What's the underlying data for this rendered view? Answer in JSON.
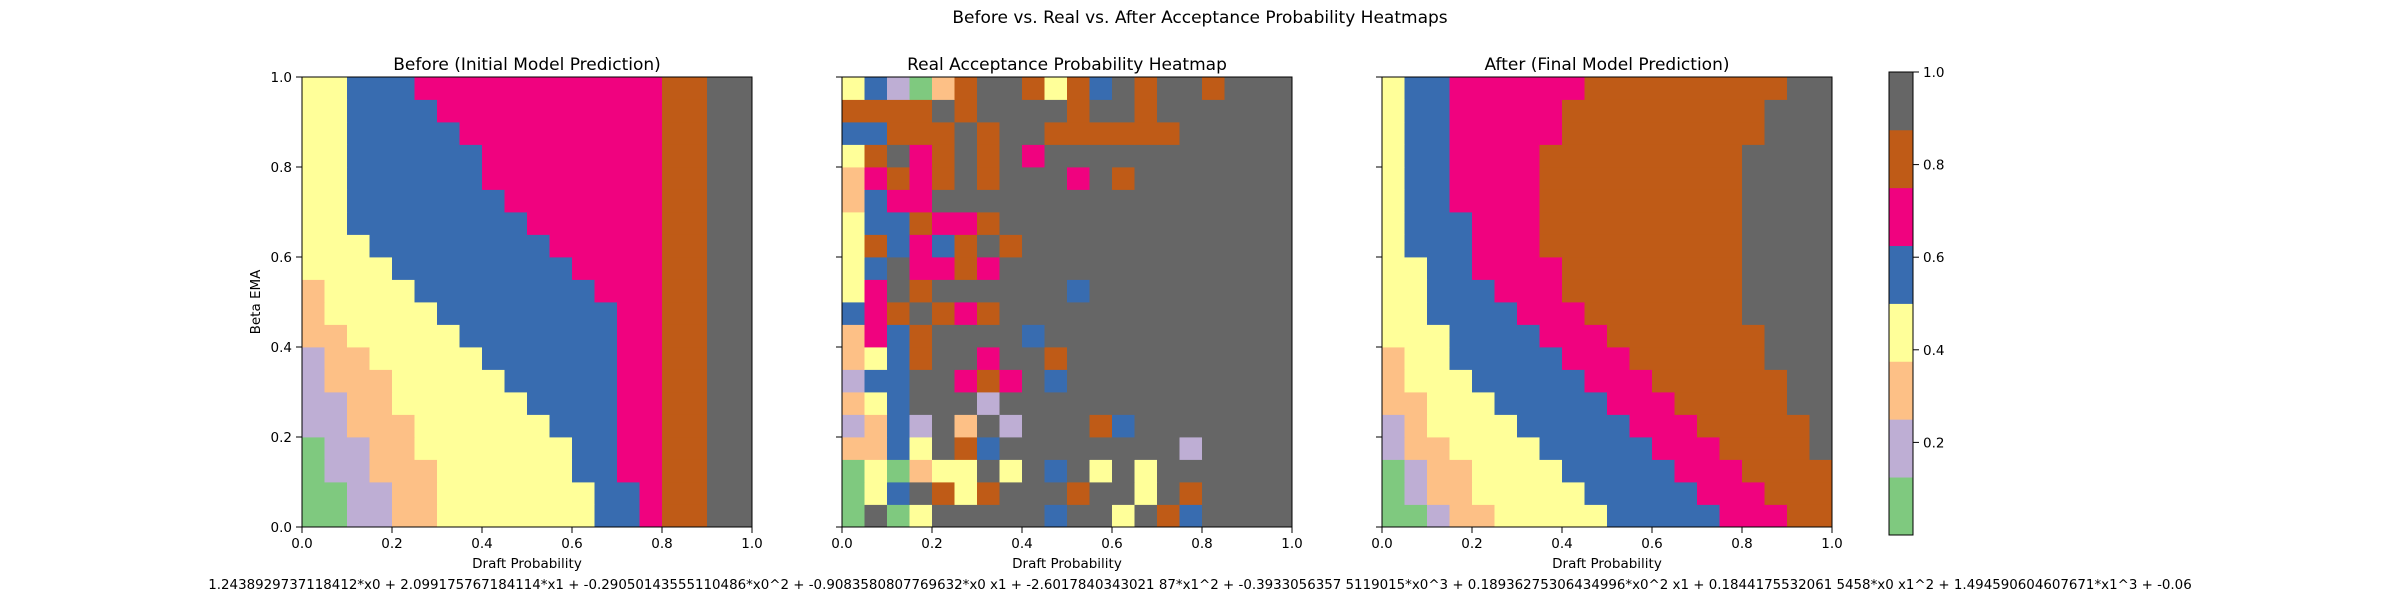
{
  "figure": {
    "suptitle": "Before vs. Real vs. After Acceptance Probability Heatmaps",
    "formula": "1.2438929737118412*x0 + 2.099175767184114*x1 + -0.29050143555110486*x0^2 + -0.9083580807769632*x0 x1 + -2.6017840343021 87*x1^2 + -0.3933056357 5119015*x0^3 + 0.18936275306434996*x0^2 x1 + 0.1844175532061 5458*x0 x1^2 + 1.494590604607671*x1^3 + -0.06"
  },
  "colors": {
    "palette": [
      "#7fc97f",
      "#beaed4",
      "#fdc086",
      "#ffff99",
      "#386cb0",
      "#f0027f",
      "#bf5b17",
      "#666666"
    ],
    "missing": "#ffffff"
  },
  "colorbar": {
    "ticks": [
      "0.2",
      "0.4",
      "0.6",
      "0.8",
      "1.0"
    ],
    "tick_values": [
      0.2,
      0.4,
      0.6,
      0.8,
      1.0
    ]
  },
  "chart_data": [
    {
      "type": "heatmap",
      "title": "Before (Initial Model Prediction)",
      "xlabel": "Draft Probability",
      "ylabel": "Beta EMA",
      "xlim": [
        0,
        1
      ],
      "ylim": [
        0,
        1
      ],
      "grid_size": 20,
      "value_range": [
        0,
        1
      ],
      "model": "before",
      "xticks": [
        "0.0",
        "0.2",
        "0.4",
        "0.6",
        "0.8",
        "1.0"
      ],
      "yticks": [
        "0.0",
        "0.2",
        "0.4",
        "0.6",
        "0.8",
        "1.0"
      ],
      "boundaries": {
        "0": [
          2,
          2,
          1,
          1,
          0,
          0,
          0,
          0,
          0,
          0,
          0,
          0,
          0,
          0,
          0,
          0,
          0,
          0,
          0,
          0
        ],
        "1": [
          4,
          4,
          3,
          3,
          2,
          2,
          1,
          1,
          0,
          0,
          0,
          0,
          0,
          0,
          0,
          0,
          0,
          0,
          0,
          0
        ],
        "2": [
          6,
          6,
          6,
          5,
          5,
          4,
          4,
          3,
          2,
          1,
          1,
          0,
          0,
          0,
          0,
          0,
          0,
          0,
          0,
          0
        ],
        "3": [
          13,
          13,
          12,
          12,
          11,
          10,
          9,
          8,
          7,
          6,
          5,
          4,
          3,
          2,
          2,
          2,
          2,
          2,
          2,
          2
        ],
        "4": [
          15,
          15,
          14,
          14,
          14,
          14,
          14,
          14,
          14,
          14,
          13,
          12,
          11,
          10,
          9,
          8,
          8,
          7,
          6,
          5
        ],
        "5": [
          16,
          16,
          16,
          16,
          16,
          16,
          16,
          16,
          16,
          16,
          16,
          16,
          16,
          16,
          16,
          16,
          16,
          16,
          16,
          16
        ],
        "6": [
          18,
          18,
          18,
          18,
          18,
          18,
          18,
          18,
          18,
          18,
          18,
          18,
          18,
          18,
          18,
          18,
          18,
          18,
          18,
          18
        ]
      }
    },
    {
      "type": "heatmap",
      "title": "Real Acceptance Probability Heatmap",
      "xlabel": "Draft Probability",
      "ylabel": "",
      "xlim": [
        0,
        1
      ],
      "ylim": [
        0,
        1
      ],
      "grid_size": 20,
      "value_range": [
        0,
        1
      ],
      "model": "real",
      "xticks": [
        "0.0",
        "0.2",
        "0.4",
        "0.6",
        "0.8",
        "1.0"
      ],
      "yticks": [],
      "cell_classes_top_to_bottom": [
        "34102677636476776777",
        "66667677776776777777",
        "44666767766666677777",
        "36756767577777777777",
        "25656767775767777777",
        "24557777777777777777",
        "34465567777777777777",
        "36454676777777777777",
        "34755657777777777777",
        "35767777774777777777",
        "45676567777777777777",
        "25467777477777777777",
        "23467757767777777777",
        "14477565747777777777",
        "23477717777777777777",
        "12417271777647777777",
        "22437647777777717777",
        "03023373747373777777",
        "03476367776773767777",
        "07037777747737647777"
      ]
    },
    {
      "type": "heatmap",
      "title": "After (Final Model Prediction)",
      "xlabel": "Draft Probability",
      "ylabel": "",
      "xlim": [
        0,
        1
      ],
      "ylim": [
        0,
        1
      ],
      "grid_size": 20,
      "value_range": [
        0,
        1
      ],
      "model": "after",
      "xticks": [
        "0.0",
        "0.2",
        "0.4",
        "0.6",
        "0.8",
        "1.0"
      ],
      "yticks": [],
      "boundaries": {
        "0": [
          2,
          1,
          1,
          0,
          0,
          0,
          0,
          0,
          0,
          0,
          0,
          0,
          0,
          0,
          0,
          0,
          0,
          0,
          0,
          0
        ],
        "1": [
          3,
          2,
          2,
          1,
          1,
          0,
          0,
          0,
          0,
          0,
          0,
          0,
          0,
          0,
          0,
          0,
          0,
          0,
          0,
          0
        ],
        "2": [
          5,
          4,
          4,
          3,
          2,
          2,
          1,
          1,
          0,
          0,
          0,
          0,
          0,
          0,
          0,
          0,
          0,
          0,
          0,
          0
        ],
        "3": [
          10,
          9,
          8,
          7,
          6,
          5,
          4,
          3,
          3,
          2,
          2,
          2,
          1,
          1,
          1,
          1,
          1,
          1,
          1,
          1
        ],
        "4": [
          15,
          14,
          13,
          12,
          11,
          10,
          9,
          8,
          7,
          6,
          5,
          4,
          4,
          4,
          3,
          3,
          3,
          3,
          3,
          3
        ],
        "5": [
          18,
          17,
          16,
          15,
          14,
          13,
          12,
          11,
          10,
          9,
          8,
          8,
          7,
          7,
          7,
          7,
          7,
          8,
          8,
          9
        ],
        "6": [
          20,
          20,
          20,
          19,
          19,
          18,
          18,
          17,
          17,
          16,
          16,
          16,
          16,
          16,
          16,
          16,
          16,
          17,
          17,
          18
        ]
      }
    }
  ]
}
